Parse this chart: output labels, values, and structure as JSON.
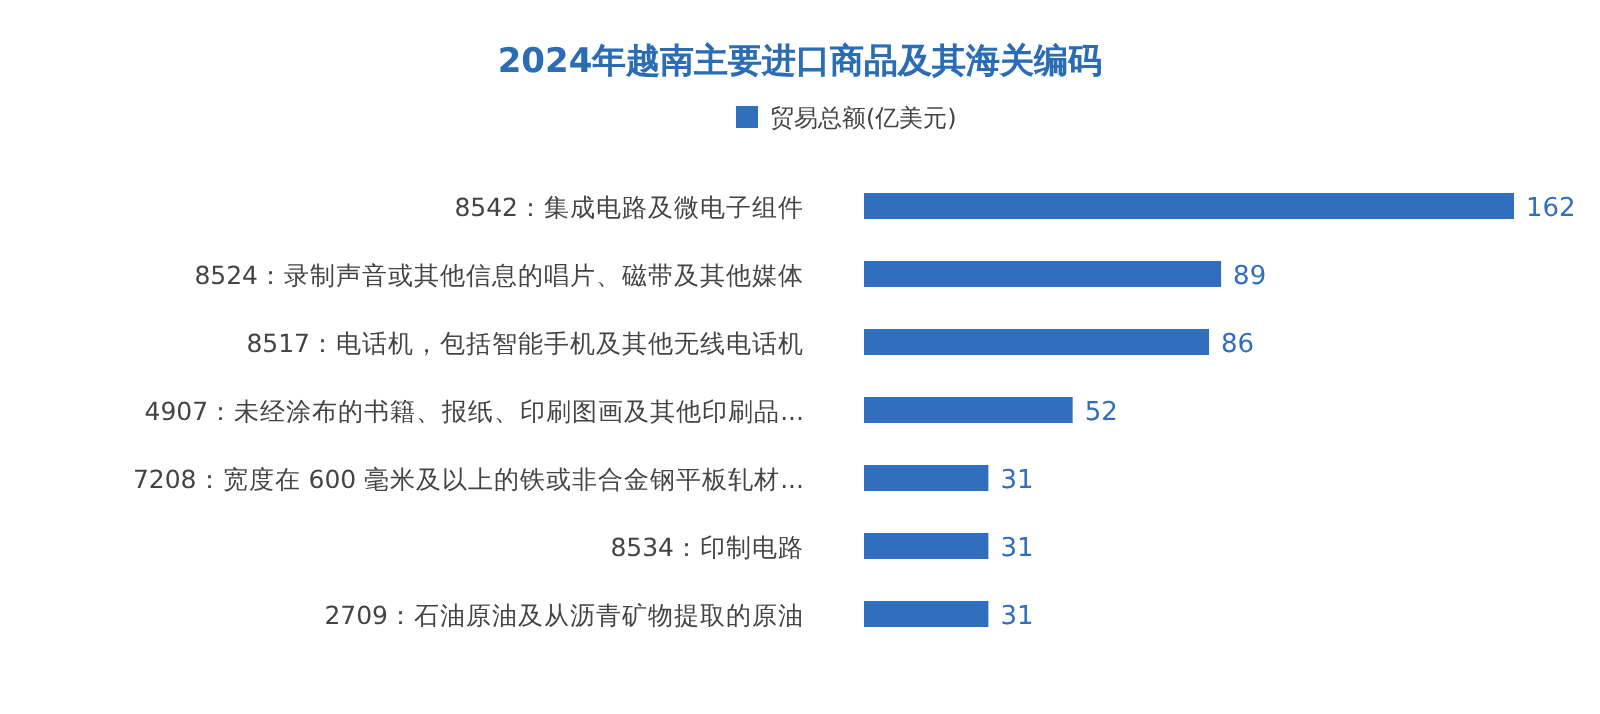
{
  "chart_data": {
    "type": "bar",
    "orientation": "horizontal",
    "title": "2024年越南主要进口商品及其海关编码",
    "categories": [
      "8542：集成电路及微电子组件",
      "8524：录制声音或其他信息的唱片、磁带及其他媒体",
      "8517：电话机，包括智能手机及其他无线电话机",
      "4907：未经涂布的书籍、报纸、印刷图画及其他印刷品...",
      "7208：宽度在 600 毫米及以上的铁或非合金钢平板轧材...",
      "8534：印制电路",
      "2709：石油原油及从沥青矿物提取的原油"
    ],
    "series": [
      {
        "name": "贸易总额(亿美元)",
        "color": "#2f6fbd",
        "values": [
          162,
          89,
          86,
          52,
          31,
          31,
          31
        ]
      }
    ],
    "data_labels": true,
    "legend": "top"
  }
}
